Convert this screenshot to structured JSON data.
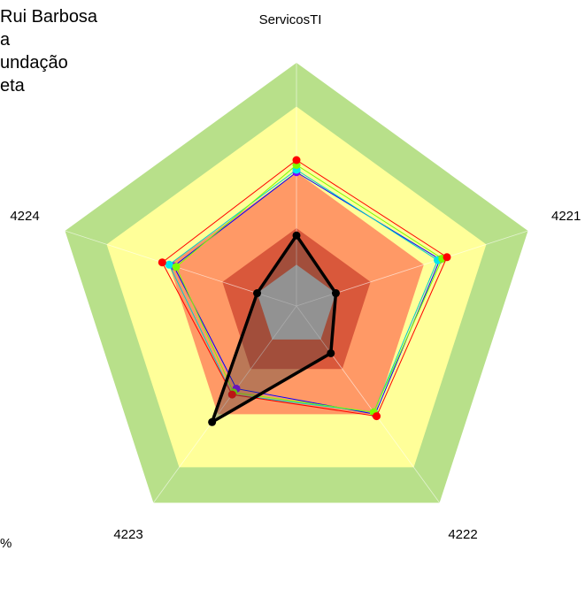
{
  "chart_data": {
    "type": "radar",
    "axes": [
      "ServicosTI",
      "4221",
      "4222",
      "4223",
      "4224"
    ],
    "rings": [
      {
        "level": 1.0,
        "color": "#b8e08a"
      },
      {
        "level": 0.82,
        "color": "#ffff99"
      },
      {
        "level": 0.55,
        "color": "#ff9966"
      },
      {
        "level": 0.32,
        "color": "#d9583b"
      },
      {
        "level": 0.17,
        "color": "#c0c0c0"
      }
    ],
    "series": [
      {
        "values": [
          0.55,
          0.62,
          0.55,
          0.42,
          0.53
        ],
        "color": "#0000ff",
        "marker": "#7f00ff"
      },
      {
        "values": [
          0.56,
          0.61,
          0.54,
          0.45,
          0.55
        ],
        "color": "#00cccc",
        "marker": "#00e5ee"
      },
      {
        "values": [
          0.58,
          0.63,
          0.54,
          0.44,
          0.52
        ],
        "color": "#7cfc00",
        "marker": "#7cfc00"
      },
      {
        "values": [
          0.6,
          0.65,
          0.56,
          0.45,
          0.58
        ],
        "color": "#ff0000",
        "marker": "#ff0000"
      },
      {
        "values": [
          0.29,
          0.17,
          0.24,
          0.59,
          0.17
        ],
        "color": "#000000",
        "marker": "#000000",
        "bold": true
      }
    ]
  },
  "legend": {
    "lines": [
      "Rui Barbosa",
      "a",
      "undação",
      "eta"
    ]
  },
  "percent_label": "%"
}
